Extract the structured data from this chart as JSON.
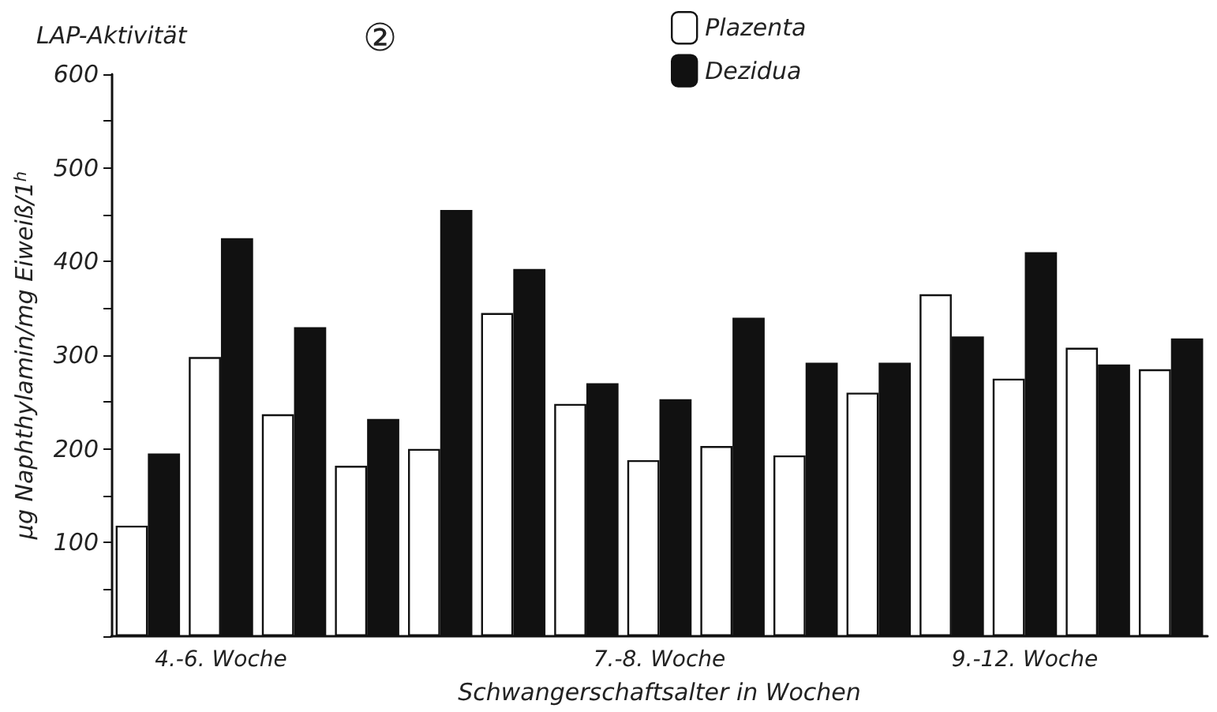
{
  "chart_data": {
    "type": "bar",
    "title": "LAP-Aktivität",
    "ylabel": "µg Naphthylamin/mg Eiweiß/1$^{h}$",
    "xlabel": "Schwangerschaftsalter in Wochen",
    "annotations": [
      "②"
    ],
    "categories": [
      null,
      "4.-6. Woche",
      null,
      null,
      null,
      null,
      null,
      "7.-8. Woche",
      null,
      null,
      null,
      null,
      "9.-12. Woche",
      null,
      null
    ],
    "series": [
      {
        "name": "Plazenta",
        "color": "#ffffff",
        "values": [
          118,
          298,
          237,
          182,
          200,
          345,
          248,
          188,
          203,
          193,
          260,
          365,
          275,
          308,
          285
        ]
      },
      {
        "name": "Dezidua",
        "color": "#111111",
        "values": [
          195,
          425,
          330,
          232,
          455,
          392,
          270,
          253,
          340,
          292,
          292,
          320,
          410,
          290,
          318
        ]
      }
    ],
    "ylim": [
      0,
      600
    ],
    "yticks": [
      {
        "value": 0,
        "label": null
      },
      {
        "value": 50,
        "label": null
      },
      100,
      {
        "value": 150,
        "label": null
      },
      200,
      {
        "value": 250,
        "label": null
      },
      300,
      {
        "value": 350,
        "label": null
      },
      400,
      {
        "value": 450,
        "label": null
      },
      500,
      {
        "value": 550,
        "label": null
      },
      600
    ],
    "grid": false,
    "legend": "top"
  }
}
